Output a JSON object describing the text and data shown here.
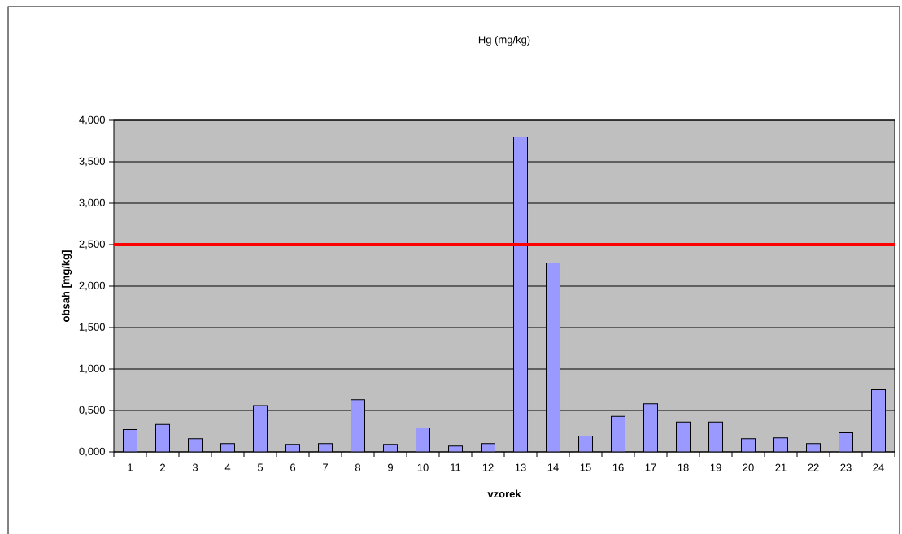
{
  "chart_data": {
    "type": "bar",
    "title": "Hg (mg/kg)",
    "xlabel": "vzorek",
    "ylabel": "obsah [mg/kg]",
    "categories": [
      "1",
      "2",
      "3",
      "4",
      "5",
      "6",
      "7",
      "8",
      "9",
      "10",
      "11",
      "12",
      "13",
      "14",
      "15",
      "16",
      "17",
      "18",
      "19",
      "20",
      "21",
      "22",
      "23",
      "24"
    ],
    "values": [
      0.27,
      0.33,
      0.16,
      0.1,
      0.56,
      0.09,
      0.1,
      0.63,
      0.09,
      0.29,
      0.07,
      0.1,
      3.8,
      2.28,
      0.19,
      0.43,
      0.58,
      0.36,
      0.36,
      0.16,
      0.17,
      0.1,
      0.23,
      0.75
    ],
    "color": "#9999ff",
    "ylim": [
      0,
      4
    ],
    "yticks": [
      {
        "value": 0,
        "label": "0,000"
      },
      {
        "value": 0.5,
        "label": "0,500"
      },
      {
        "value": 1,
        "label": "1,000"
      },
      {
        "value": 1.5,
        "label": "1,500"
      },
      {
        "value": 2,
        "label": "2,000"
      },
      {
        "value": 2.5,
        "label": "2,500"
      },
      {
        "value": 3,
        "label": "3,000"
      },
      {
        "value": 3.5,
        "label": "3,500"
      },
      {
        "value": 4,
        "label": "4,000"
      }
    ],
    "grid": "y",
    "ref_lines": [
      {
        "axis": "y",
        "value": 2.5,
        "color": "#ff0000"
      }
    ]
  }
}
